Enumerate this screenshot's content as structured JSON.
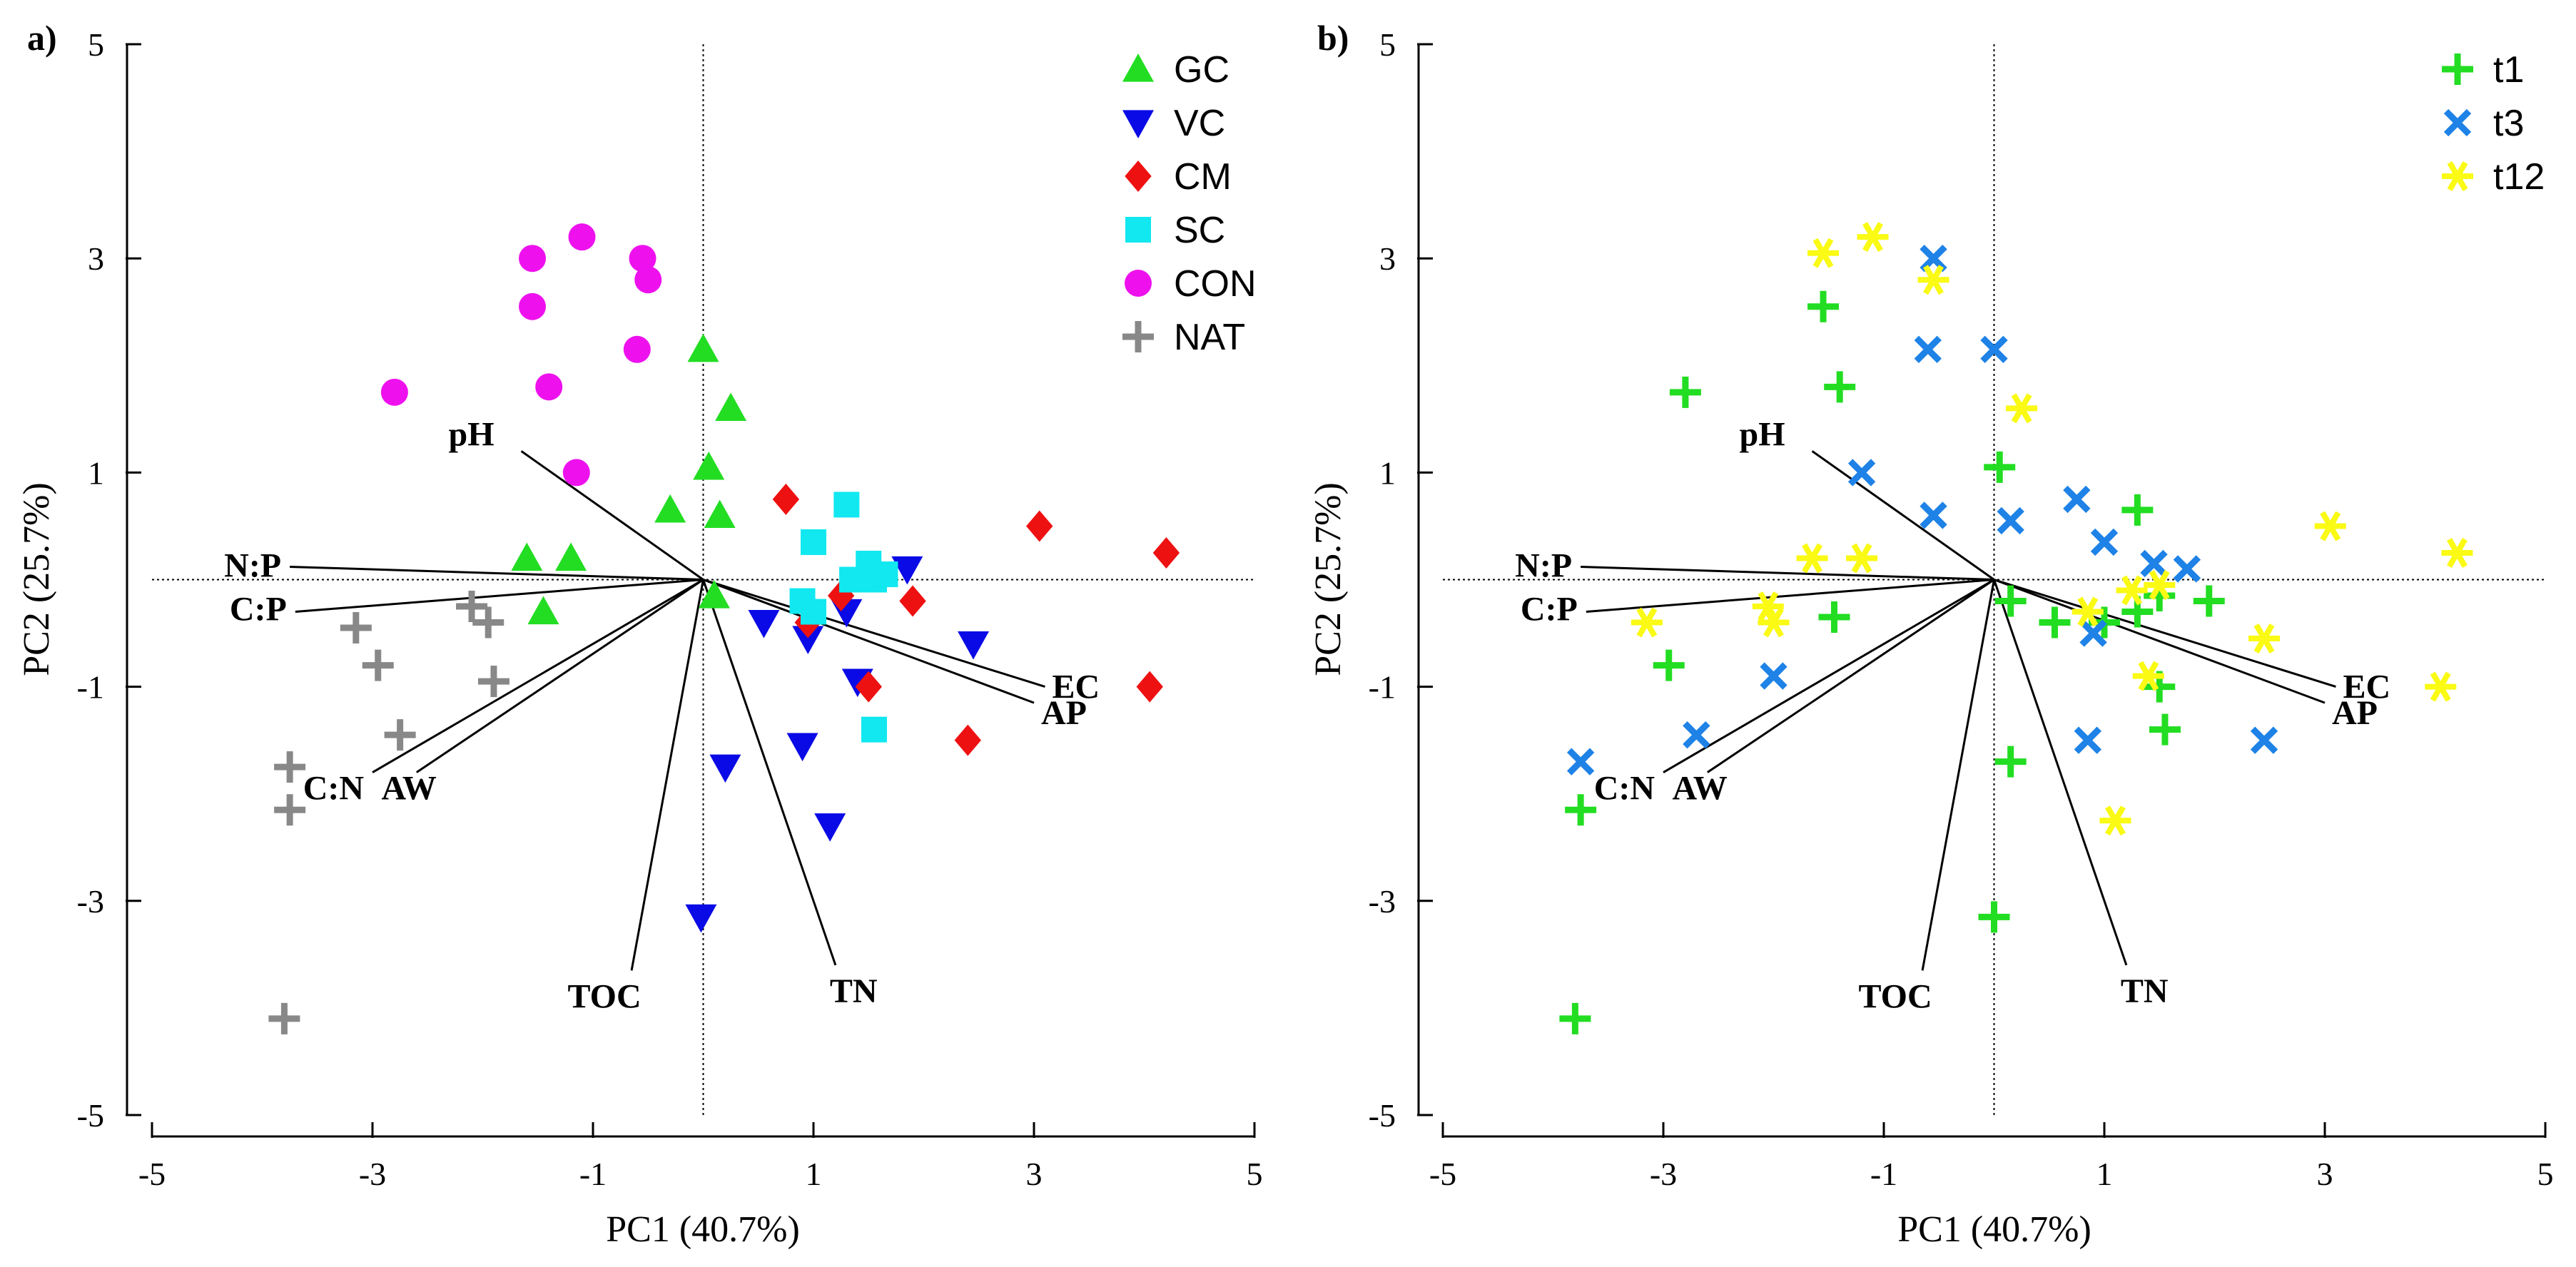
{
  "chart_data": [
    {
      "panel_label": "a)",
      "type": "scatter",
      "subtype": "PCA biplot",
      "xlabel": "PC1 (40.7%)",
      "ylabel": "PC2 (25.7%)",
      "xlim": [
        -5,
        5
      ],
      "ylim": [
        -5,
        5
      ],
      "xticks": [
        -5,
        -3,
        -1,
        1,
        3,
        5
      ],
      "yticks": [
        -5,
        -3,
        -1,
        1,
        3,
        5
      ],
      "legend_position": "top-right",
      "series": [
        {
          "name": "GC",
          "marker": "triangle-up",
          "color": "#22dd22",
          "points": [
            [
              0,
              2.15
            ],
            [
              0.25,
              1.6
            ],
            [
              0.05,
              1.05
            ],
            [
              0.15,
              0.6
            ],
            [
              -0.3,
              0.65
            ],
            [
              -1.6,
              0.2
            ],
            [
              -1.2,
              0.2
            ],
            [
              -1.45,
              -0.3
            ],
            [
              0.1,
              -0.15
            ]
          ]
        },
        {
          "name": "VC",
          "marker": "triangle-down",
          "color": "#0a0ae6",
          "points": [
            [
              -0.02,
              -3.15
            ],
            [
              0.2,
              -1.75
            ],
            [
              0.55,
              -0.4
            ],
            [
              0.95,
              -0.55
            ],
            [
              0.9,
              -1.55
            ],
            [
              1.15,
              -2.3
            ],
            [
              1.4,
              -0.95
            ],
            [
              1.85,
              0.1
            ],
            [
              2.45,
              -0.6
            ],
            [
              1.3,
              -0.3
            ]
          ]
        },
        {
          "name": "CM",
          "marker": "diamond",
          "color": "#ee1111",
          "points": [
            [
              0.75,
              0.75
            ],
            [
              1.25,
              -0.15
            ],
            [
              0.95,
              -0.4
            ],
            [
              1.5,
              -1.0
            ],
            [
              1.9,
              -0.2
            ],
            [
              2.4,
              -1.5
            ],
            [
              3.05,
              0.5
            ],
            [
              4.05,
              -1.0
            ],
            [
              4.2,
              0.25
            ]
          ]
        },
        {
          "name": "SC",
          "marker": "square",
          "color": "#11e8f0",
          "points": [
            [
              1.3,
              0.7
            ],
            [
              1.0,
              0.35
            ],
            [
              1.5,
              0.15
            ],
            [
              1.35,
              0.0
            ],
            [
              1.55,
              0.0
            ],
            [
              1.65,
              0.05
            ],
            [
              1.0,
              -0.3
            ],
            [
              1.55,
              -1.4
            ],
            [
              0.9,
              -0.2
            ]
          ]
        },
        {
          "name": "CON",
          "marker": "circle",
          "color": "#ee11ee",
          "points": [
            [
              -1.55,
              3.0
            ],
            [
              -1.1,
              3.2
            ],
            [
              -0.55,
              3.0
            ],
            [
              -1.55,
              2.55
            ],
            [
              -0.5,
              2.8
            ],
            [
              -0.6,
              2.15
            ],
            [
              -1.4,
              1.8
            ],
            [
              -2.8,
              1.75
            ],
            [
              -1.15,
              1.0
            ]
          ]
        },
        {
          "name": "NAT",
          "marker": "plus",
          "color": "#888888",
          "points": [
            [
              -2.1,
              -0.25
            ],
            [
              -1.95,
              -0.4
            ],
            [
              -3.15,
              -0.45
            ],
            [
              -2.95,
              -0.8
            ],
            [
              -1.9,
              -0.95
            ],
            [
              -2.75,
              -1.45
            ],
            [
              -3.75,
              -1.75
            ],
            [
              -3.75,
              -2.15
            ],
            [
              -3.8,
              -4.1
            ]
          ]
        }
      ],
      "loadings": [
        {
          "name": "pH",
          "x": -1.65,
          "y": 1.2
        },
        {
          "name": "N:P",
          "x": -3.75,
          "y": 0.12
        },
        {
          "name": "C:P",
          "x": -3.7,
          "y": -0.3
        },
        {
          "name": "C:N",
          "x": -3.0,
          "y": -1.8
        },
        {
          "name": "AW",
          "x": -2.6,
          "y": -1.8
        },
        {
          "name": "EC",
          "x": 3.1,
          "y": -1.0
        },
        {
          "name": "AP",
          "x": 3.0,
          "y": -1.15
        },
        {
          "name": "TN",
          "x": 1.2,
          "y": -3.6
        },
        {
          "name": "TOC",
          "x": -0.65,
          "y": -3.65
        }
      ]
    },
    {
      "panel_label": "b)",
      "type": "scatter",
      "subtype": "PCA biplot",
      "xlabel": "PC1 (40.7%)",
      "ylabel": "PC2 (25.7%)",
      "xlim": [
        -5,
        5
      ],
      "ylim": [
        -5,
        5
      ],
      "xticks": [
        -5,
        -3,
        -1,
        1,
        3,
        5
      ],
      "yticks": [
        -5,
        -3,
        -1,
        1,
        3,
        5
      ],
      "legend_position": "top-right",
      "series": [
        {
          "name": "t1",
          "marker": "plus",
          "color": "#22dd22",
          "points": [
            [
              -3.8,
              -4.1
            ],
            [
              -3.75,
              -2.15
            ],
            [
              -2.95,
              -0.8
            ],
            [
              -2.8,
              1.75
            ],
            [
              -1.55,
              2.55
            ],
            [
              -1.4,
              1.8
            ],
            [
              -1.45,
              -0.35
            ],
            [
              0.05,
              1.05
            ],
            [
              0.15,
              -0.2
            ],
            [
              0.55,
              -0.4
            ],
            [
              0.15,
              -1.7
            ],
            [
              0.0,
              -3.15
            ],
            [
              1.3,
              0.65
            ],
            [
              1.5,
              -0.15
            ],
            [
              1.95,
              -0.2
            ],
            [
              1.5,
              -1.0
            ],
            [
              1.55,
              -1.4
            ],
            [
              1.0,
              -0.4
            ],
            [
              1.3,
              -0.3
            ]
          ]
        },
        {
          "name": "t3",
          "marker": "x",
          "color": "#1e82e6",
          "points": [
            [
              -0.55,
              3.0
            ],
            [
              -0.6,
              2.15
            ],
            [
              0.0,
              2.15
            ],
            [
              -1.2,
              1.0
            ],
            [
              -0.55,
              0.6
            ],
            [
              0.15,
              0.55
            ],
            [
              0.75,
              0.75
            ],
            [
              1.0,
              0.35
            ],
            [
              1.45,
              0.15
            ],
            [
              1.75,
              0.1
            ],
            [
              -2.0,
              -0.9
            ],
            [
              -2.7,
              -1.45
            ],
            [
              -3.75,
              -1.7
            ],
            [
              0.9,
              -0.5
            ],
            [
              0.85,
              -1.5
            ],
            [
              2.45,
              -1.5
            ]
          ]
        },
        {
          "name": "t12",
          "marker": "asterisk",
          "color": "#fafa14",
          "points": [
            [
              -1.55,
              3.05
            ],
            [
              -1.1,
              3.2
            ],
            [
              -0.55,
              2.8
            ],
            [
              0.25,
              1.6
            ],
            [
              -1.65,
              0.2
            ],
            [
              -1.2,
              0.2
            ],
            [
              -3.15,
              -0.4
            ],
            [
              -2.05,
              -0.25
            ],
            [
              -2.0,
              -0.4
            ],
            [
              1.25,
              -0.1
            ],
            [
              1.5,
              -0.05
            ],
            [
              0.85,
              -0.3
            ],
            [
              2.45,
              -0.55
            ],
            [
              3.05,
              0.5
            ],
            [
              4.2,
              0.25
            ],
            [
              4.05,
              -1.0
            ],
            [
              1.4,
              -0.9
            ],
            [
              1.1,
              -2.25
            ]
          ]
        }
      ],
      "loadings": [
        {
          "name": "pH",
          "x": -1.65,
          "y": 1.2
        },
        {
          "name": "N:P",
          "x": -3.75,
          "y": 0.12
        },
        {
          "name": "C:P",
          "x": -3.7,
          "y": -0.3
        },
        {
          "name": "C:N",
          "x": -3.0,
          "y": -1.8
        },
        {
          "name": "AW",
          "x": -2.6,
          "y": -1.8
        },
        {
          "name": "EC",
          "x": 3.1,
          "y": -1.0
        },
        {
          "name": "AP",
          "x": 3.0,
          "y": -1.15
        },
        {
          "name": "TN",
          "x": 1.2,
          "y": -3.6
        },
        {
          "name": "TOC",
          "x": -0.65,
          "y": -3.65
        }
      ]
    }
  ]
}
